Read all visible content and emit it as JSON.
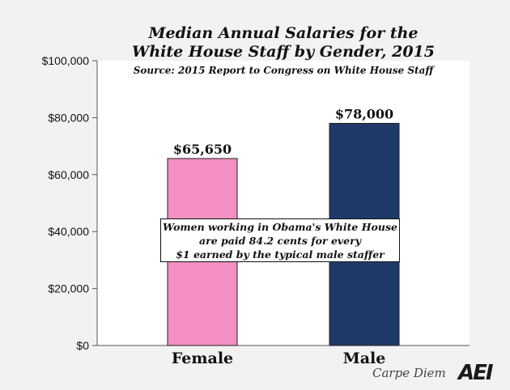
{
  "chart_data": {
    "type": "bar",
    "title_line1": "Median Annual Salaries for the",
    "title_line2": "White House Staff by Gender, 2015",
    "subtitle": "Source: 2015 Report to Congress on White House Staff",
    "categories": [
      "Female",
      "Male"
    ],
    "values": [
      65650,
      78000
    ],
    "data_labels": [
      "$65,650",
      "$78,000"
    ],
    "colors": [
      "#f48fc3",
      "#1f3a68"
    ],
    "ylim": [
      0,
      100000
    ],
    "yticks": [
      0,
      20000,
      40000,
      60000,
      80000,
      100000
    ],
    "ytick_labels": [
      "$0",
      "$20,000",
      "$40,000",
      "$60,000",
      "$80,000",
      "$100,000"
    ],
    "xlabel": "",
    "ylabel": "",
    "grid": false
  },
  "annotation": {
    "line1": "Women working in Obama's White House",
    "line2": "are paid  84.2 cents for every",
    "line3": "$1 earned by the typical male staffer"
  },
  "footer": {
    "brand": "Carpe Diem",
    "logo": "AEI"
  }
}
